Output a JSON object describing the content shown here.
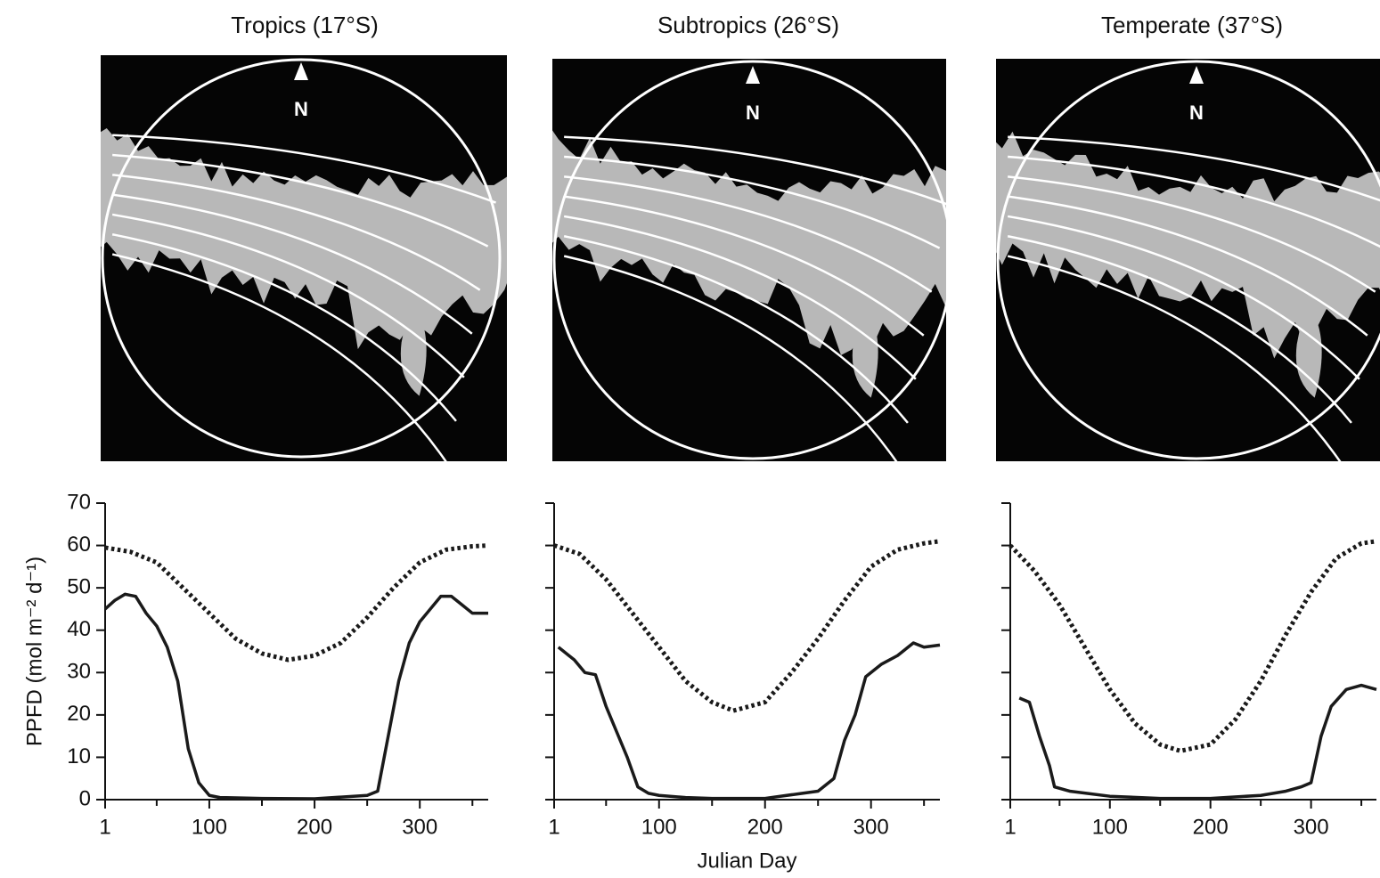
{
  "chart_data": [
    {
      "type": "line",
      "title": "Tropics (17°S)",
      "north_label": "N",
      "ylabel": "PPFD (mol m⁻² d⁻¹)",
      "xlim": [
        1,
        365
      ],
      "xticks": [
        1,
        100,
        200,
        300
      ],
      "xminorticks": [
        50,
        150,
        250,
        350
      ],
      "ylim": [
        0,
        70
      ],
      "yticks": [
        0,
        10,
        20,
        30,
        40,
        50,
        60,
        70
      ],
      "ytick_labels": true,
      "series": [
        {
          "style": "dotted",
          "color": "#1a1a1a",
          "x": [
            1,
            25,
            50,
            75,
            100,
            125,
            150,
            175,
            200,
            225,
            250,
            275,
            300,
            325,
            350,
            365
          ],
          "values": [
            59.5,
            58.5,
            56,
            50,
            44,
            38,
            34.5,
            33,
            34,
            37,
            43,
            50,
            56,
            59,
            59.8,
            60
          ]
        },
        {
          "style": "solid",
          "color": "#1a1a1a",
          "x": [
            1,
            10,
            20,
            30,
            40,
            50,
            60,
            70,
            80,
            90,
            100,
            110,
            150,
            200,
            250,
            260,
            270,
            280,
            290,
            300,
            310,
            320,
            330,
            340,
            350,
            365
          ],
          "values": [
            45,
            47,
            48.5,
            48,
            44,
            41,
            36,
            28,
            12,
            4,
            1,
            0.5,
            0.3,
            0.2,
            1,
            2,
            15,
            28,
            37,
            42,
            45,
            48,
            48,
            46,
            44,
            44
          ]
        }
      ]
    },
    {
      "type": "line",
      "title": "Subtropics (26°S)",
      "north_label": "N",
      "xlabel": "Julian Day",
      "xlim": [
        1,
        365
      ],
      "xticks": [
        1,
        100,
        200,
        300
      ],
      "xminorticks": [
        50,
        150,
        250,
        350
      ],
      "ylim": [
        0,
        70
      ],
      "yticks": [
        0,
        10,
        20,
        30,
        40,
        50,
        60,
        70
      ],
      "ytick_labels": false,
      "series": [
        {
          "style": "dotted",
          "color": "#1a1a1a",
          "x": [
            1,
            25,
            50,
            75,
            100,
            125,
            150,
            170,
            200,
            225,
            250,
            275,
            300,
            325,
            350,
            365
          ],
          "values": [
            60,
            58,
            52,
            44,
            36,
            28,
            23,
            21,
            23,
            30,
            38,
            47,
            55,
            59,
            60.5,
            61
          ]
        },
        {
          "style": "solid",
          "color": "#1a1a1a",
          "x": [
            5,
            20,
            30,
            40,
            50,
            60,
            70,
            80,
            90,
            100,
            125,
            150,
            200,
            250,
            265,
            275,
            285,
            295,
            310,
            325,
            340,
            350,
            365
          ],
          "values": [
            36,
            33,
            30,
            29.5,
            22,
            16,
            10,
            3,
            1.5,
            1,
            0.5,
            0.3,
            0.3,
            2,
            5,
            14,
            20,
            29,
            32,
            34,
            37,
            36,
            36.5
          ]
        }
      ]
    },
    {
      "type": "line",
      "title": "Temperate (37°S)",
      "north_label": "N",
      "xlim": [
        1,
        365
      ],
      "xticks": [
        1,
        100,
        200,
        300
      ],
      "xminorticks": [
        50,
        150,
        250,
        350
      ],
      "ylim": [
        0,
        70
      ],
      "yticks": [
        0,
        10,
        20,
        30,
        40,
        50,
        60,
        70
      ],
      "ytick_labels": false,
      "series": [
        {
          "style": "dotted",
          "color": "#1a1a1a",
          "x": [
            1,
            25,
            50,
            75,
            100,
            125,
            150,
            170,
            200,
            225,
            250,
            275,
            300,
            325,
            350,
            365
          ],
          "values": [
            60,
            54,
            46,
            36,
            26,
            18,
            13,
            11.5,
            13,
            19,
            28,
            39,
            49,
            57,
            60.5,
            61
          ]
        },
        {
          "style": "solid",
          "color": "#1a1a1a",
          "x": [
            10,
            20,
            30,
            40,
            45,
            60,
            100,
            150,
            200,
            250,
            275,
            290,
            300,
            310,
            320,
            335,
            350,
            365
          ],
          "values": [
            24,
            23,
            15,
            8,
            3,
            2,
            0.8,
            0.3,
            0.3,
            1,
            2,
            3,
            4,
            15,
            22,
            26,
            27,
            26
          ]
        }
      ]
    }
  ]
}
